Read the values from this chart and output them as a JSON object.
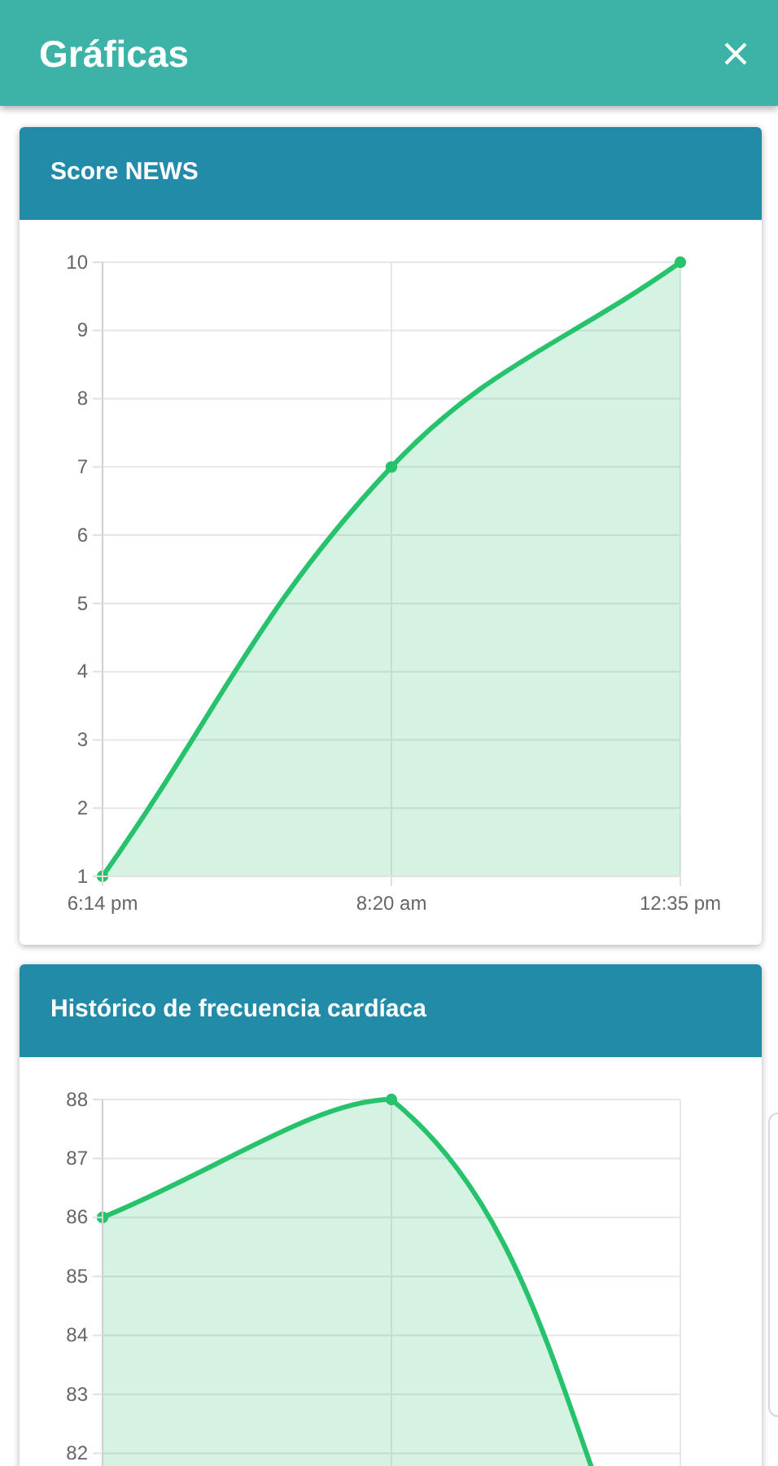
{
  "chart_data": [
    {
      "type": "area",
      "title": "Score NEWS",
      "annotations": [
        "Gráficas"
      ],
      "categories": [
        "6:14 pm",
        "8:20 am",
        "12:35 pm"
      ],
      "values": [
        1,
        7,
        10
      ],
      "color": "#27c26c",
      "ylim": [
        1,
        10
      ],
      "yticks": [
        1,
        2,
        3,
        4,
        5,
        6,
        7,
        8,
        9,
        10
      ],
      "grid": true,
      "marker": "circle"
    },
    {
      "type": "area",
      "title": "Histórico de frecuencia cardíaca",
      "categories": [
        null,
        null,
        null
      ],
      "values": [
        86,
        88,
        78
      ],
      "color": "#27c26c",
      "ylim": [
        78,
        88
      ],
      "yticks": [
        82,
        83,
        84,
        85,
        86,
        87,
        88
      ],
      "grid": true,
      "marker": "circle"
    }
  ]
}
